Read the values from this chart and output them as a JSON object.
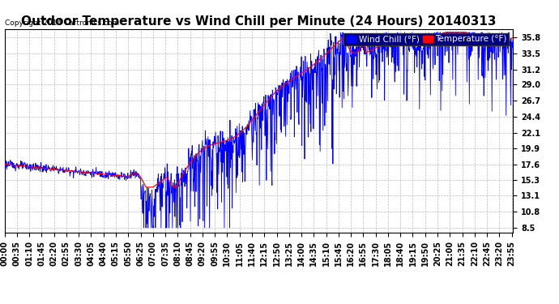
{
  "title": "Outdoor Temperature vs Wind Chill per Minute (24 Hours) 20140313",
  "copyright": "Copyright 2014 Cartronics.com",
  "legend_wind_chill": "Wind Chill (°F)",
  "legend_temperature": "Temperature (°F)",
  "wind_chill_color": "#ff0000",
  "temperature_color": "#0000ff",
  "background_color": "#ffffff",
  "plot_bg_color": "#ffffff",
  "grid_color": "#bbbbbb",
  "y_ticks": [
    8.5,
    10.8,
    13.1,
    15.3,
    17.6,
    19.9,
    22.1,
    24.4,
    26.7,
    29.0,
    31.2,
    33.5,
    35.8
  ],
  "ylim": [
    7.8,
    37.0
  ],
  "total_minutes": 1440,
  "title_fontsize": 11,
  "tick_fontsize": 7,
  "legend_fontsize": 7.5,
  "x_tick_step": 35
}
